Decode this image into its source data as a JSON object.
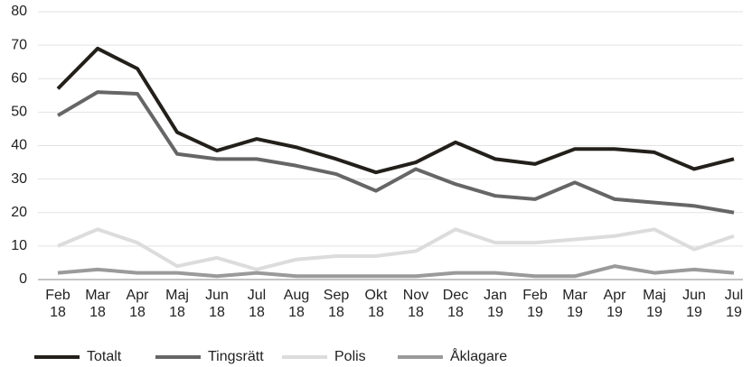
{
  "chart_data": {
    "type": "line",
    "categories": [
      "Feb 18",
      "Mar 18",
      "Apr 18",
      "Maj 18",
      "Jun 18",
      "Jul 18",
      "Aug 18",
      "Sep 18",
      "Okt 18",
      "Nov 18",
      "Dec 18",
      "Jan 19",
      "Feb 19",
      "Mar 19",
      "Apr 19",
      "Maj 19",
      "Jun 19",
      "Jul 19"
    ],
    "series": [
      {
        "name": "Totalt",
        "color": "#231f1a",
        "values": [
          57,
          69,
          63,
          44,
          38.5,
          42,
          39.5,
          36,
          32,
          35,
          41,
          36,
          34.5,
          39,
          39,
          38,
          33,
          36
        ]
      },
      {
        "name": "Tingsrätt",
        "color": "#666666",
        "values": [
          49,
          56,
          55.5,
          37.5,
          36,
          36,
          34,
          31.5,
          26.5,
          33,
          28.5,
          25,
          24,
          29,
          24,
          23,
          22,
          20
        ]
      },
      {
        "name": "Polis",
        "color": "#dcdcdc",
        "values": [
          10,
          15,
          11,
          4,
          6.5,
          3,
          6,
          7,
          7,
          8.5,
          15,
          11,
          11,
          12,
          13,
          15,
          9,
          13
        ]
      },
      {
        "name": "Åklagare",
        "color": "#9a9a9a",
        "values": [
          2,
          3,
          2,
          2,
          1,
          2,
          1,
          1,
          1,
          1,
          2,
          2,
          1,
          1,
          4,
          2,
          3,
          2
        ]
      }
    ],
    "ylim": [
      0,
      80
    ],
    "yticks": [
      0,
      10,
      20,
      30,
      40,
      50,
      60,
      70,
      80
    ],
    "grid": true,
    "legend": "bottom"
  }
}
